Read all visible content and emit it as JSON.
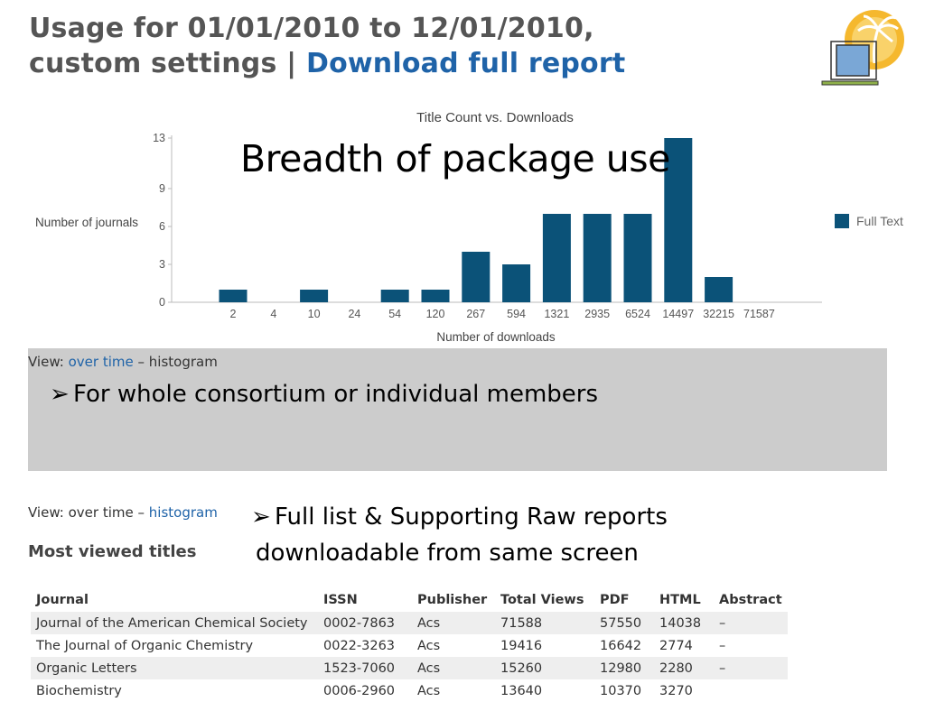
{
  "header": {
    "line1": "Usage for 01/01/2010 to 12/01/2010,",
    "line2_prefix": "custom settings | ",
    "line2_link": "Download full report"
  },
  "overlay_title": "Breadth of package use",
  "chart_data": {
    "type": "bar",
    "title": "Title Count vs. Downloads",
    "xlabel": "Number of downloads",
    "ylabel": "Number of journals",
    "categories": [
      "2",
      "4",
      "10",
      "24",
      "54",
      "120",
      "267",
      "594",
      "1321",
      "2935",
      "6524",
      "14497",
      "32215",
      "71587"
    ],
    "series": [
      {
        "name": "Full Text",
        "values": [
          1,
          0,
          1,
          0,
          1,
          1,
          4,
          3,
          7,
          7,
          7,
          13,
          2,
          0
        ]
      }
    ],
    "yticks": [
      0,
      3,
      6,
      9,
      13
    ],
    "ylim": [
      0,
      13
    ],
    "legend_position": "right",
    "bar_color": "#0b5278",
    "grid": false
  },
  "view1": {
    "prefix": "View: ",
    "link": "over time",
    "sep": " – ",
    "current": "histogram"
  },
  "bullet1": "For whole consortium or individual members",
  "view2": {
    "prefix": "View: ",
    "current": "over time",
    "sep": " – ",
    "link": "histogram"
  },
  "bullet2": {
    "line1": "Full list & Supporting Raw reports",
    "line2": "downloadable from same screen"
  },
  "most_viewed": "Most viewed titles",
  "table": {
    "columns": [
      "Journal",
      "ISSN",
      "Publisher",
      "Total Views",
      "PDF",
      "HTML",
      "Abstract"
    ],
    "rows": [
      [
        "Journal of the American Chemical Society",
        "0002-7863",
        "Acs",
        "71588",
        "57550",
        "14038",
        "–"
      ],
      [
        "The Journal of Organic Chemistry",
        "0022-3263",
        "Acs",
        "19416",
        "16642",
        "2774",
        "–"
      ],
      [
        "Organic Letters",
        "1523-7060",
        "Acs",
        "15260",
        "12980",
        "2280",
        "–"
      ],
      [
        "Biochemistry",
        "0006-2960",
        "Acs",
        "13640",
        "10370",
        "3270",
        ""
      ]
    ]
  },
  "colors": {
    "link": "#1f63a8",
    "panel": "#cccccc",
    "bar": "#0b5278"
  },
  "icons": {
    "logo": "laptop-palm-logo-icon",
    "bullet": "arrow-bullet-icon"
  }
}
